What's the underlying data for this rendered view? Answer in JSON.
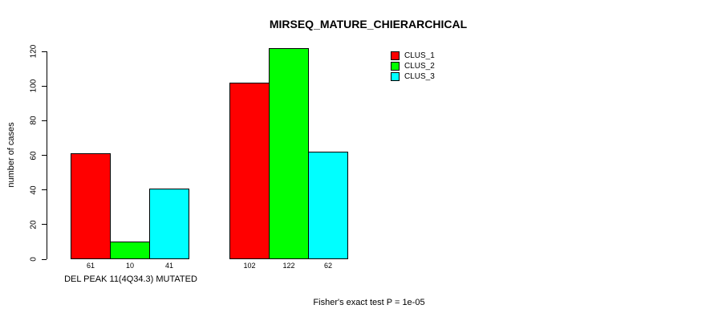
{
  "chart_data": {
    "type": "bar",
    "title": "MIRSEQ_MATURE_CHIERARCHICAL",
    "ylabel": "number of cases",
    "xlabel": "DEL PEAK 11(4Q34.3) MUTATED",
    "footer": "Fisher's exact test P = 1e-05",
    "yticks": [
      0,
      20,
      40,
      60,
      80,
      100,
      120
    ],
    "ylim": [
      0,
      120
    ],
    "grid": false,
    "legend_position": "top-right",
    "series": [
      {
        "name": "CLUS_1",
        "color": "#FF0000",
        "values": [
          61,
          102
        ]
      },
      {
        "name": "CLUS_2",
        "color": "#00FF00",
        "values": [
          10,
          122
        ]
      },
      {
        "name": "CLUS_3",
        "color": "#00FFFF",
        "values": [
          41,
          62
        ]
      }
    ]
  },
  "colors": {
    "background": "#FFFFFF",
    "text": "#000000",
    "axis": "#000000"
  }
}
